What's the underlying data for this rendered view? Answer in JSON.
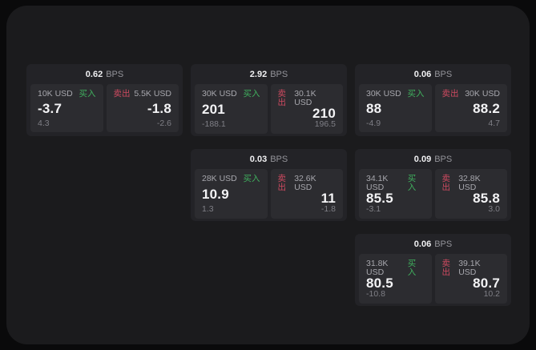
{
  "labels": {
    "bps": "BPS",
    "buy": "买入",
    "sell": "卖出"
  },
  "colors": {
    "buy_accent": "#40b05e",
    "sell_accent": "#ce4a60",
    "window_bg": "#1b1b1d",
    "card_bg": "#232327",
    "pane_bg": "#2c2c30"
  },
  "cards": [
    {
      "row": 1,
      "col": 1,
      "bps": "0.62",
      "buy": {
        "size": "10K USD",
        "price": "-3.7",
        "sub": "4.3"
      },
      "sell": {
        "size": "5.5K USD",
        "price": "-1.8",
        "sub": "-2.6"
      }
    },
    {
      "row": 1,
      "col": 2,
      "bps": "2.92",
      "buy": {
        "size": "30K USD",
        "price": "201",
        "sub": "-188.1"
      },
      "sell": {
        "size": "30.1K USD",
        "price": "210",
        "sub": "196.5"
      }
    },
    {
      "row": 1,
      "col": 3,
      "bps": "0.06",
      "buy": {
        "size": "30K USD",
        "price": "88",
        "sub": "-4.9"
      },
      "sell": {
        "size": "30K USD",
        "price": "88.2",
        "sub": "4.7"
      }
    },
    {
      "row": 2,
      "col": 2,
      "bps": "0.03",
      "buy": {
        "size": "28K USD",
        "price": "10.9",
        "sub": "1.3"
      },
      "sell": {
        "size": "32.6K USD",
        "price": "11",
        "sub": "-1.8"
      }
    },
    {
      "row": 2,
      "col": 3,
      "bps": "0.09",
      "buy": {
        "size": "34.1K USD",
        "price": "85.5",
        "sub": "-3.1"
      },
      "sell": {
        "size": "32.8K USD",
        "price": "85.8",
        "sub": "3.0"
      }
    },
    {
      "row": 3,
      "col": 3,
      "bps": "0.06",
      "buy": {
        "size": "31.8K USD",
        "price": "80.5",
        "sub": "-10.8"
      },
      "sell": {
        "size": "39.1K USD",
        "price": "80.7",
        "sub": "10.2"
      }
    }
  ]
}
